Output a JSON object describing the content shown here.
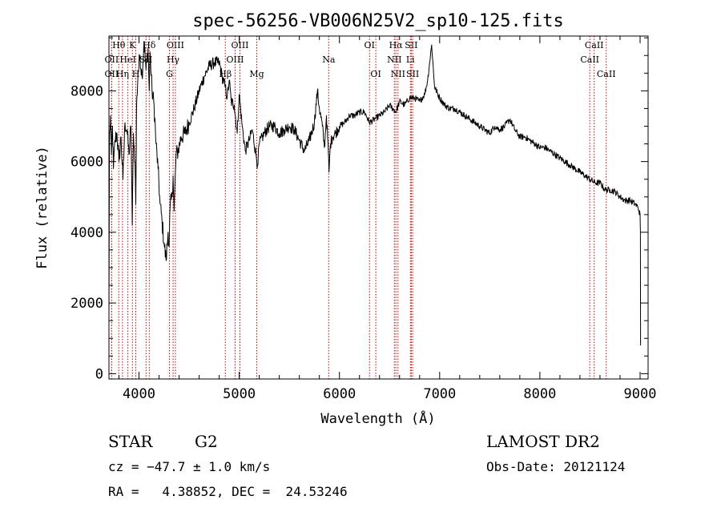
{
  "chart_data": {
    "type": "line",
    "title": "spec-56256-VB006N25V2_sp10-125.fits",
    "xlabel": "Wavelength (Å)",
    "ylabel": "Flux (relative)",
    "xlim": [
      3700,
      9080
    ],
    "ylim": [
      -150,
      9550
    ],
    "x_ticks": [
      4000,
      5000,
      6000,
      7000,
      8000,
      9000
    ],
    "x_tick_labels": [
      "4000",
      "5000",
      "6000",
      "7000",
      "8000",
      "9000"
    ],
    "y_ticks": [
      0,
      2000,
      4000,
      6000,
      8000
    ],
    "y_tick_labels": [
      "0",
      "2000",
      "4000",
      "6000",
      "8000"
    ],
    "grid": false,
    "series": [
      {
        "color": "#000000",
        "x": [
          3700,
          3705,
          3715,
          3725,
          3735,
          3745,
          3760,
          3780,
          3800,
          3820,
          3840,
          3860,
          3880,
          3900,
          3920,
          3933,
          3945,
          3960,
          3968,
          3975,
          3990,
          4010,
          4030,
          4050,
          4070,
          4090,
          4102,
          4110,
          4130,
          4150,
          4170,
          4190,
          4210,
          4230,
          4250,
          4270,
          4290,
          4300,
          4310,
          4330,
          4340,
          4350,
          4370,
          4390,
          4420,
          4460,
          4500,
          4550,
          4600,
          4650,
          4700,
          4750,
          4800,
          4830,
          4861,
          4880,
          4900,
          4920,
          4950,
          4980,
          5000,
          5030,
          5060,
          5100,
          5130,
          5167,
          5183,
          5200,
          5250,
          5300,
          5350,
          5400,
          5450,
          5500,
          5550,
          5600,
          5650,
          5700,
          5750,
          5780,
          5800,
          5830,
          5850,
          5870,
          5890,
          5896,
          5910,
          5930,
          5960,
          6000,
          6050,
          6100,
          6150,
          6200,
          6250,
          6300,
          6350,
          6400,
          6450,
          6500,
          6563,
          6600,
          6650,
          6700,
          6750,
          6800,
          6850,
          6880,
          6900,
          6920,
          6950,
          7000,
          7050,
          7100,
          7150,
          7200,
          7250,
          7300,
          7350,
          7400,
          7450,
          7500,
          7550,
          7600,
          7650,
          7700,
          7750,
          7800,
          7850,
          7900,
          7950,
          8000,
          8050,
          8100,
          8150,
          8200,
          8250,
          8300,
          8350,
          8400,
          8450,
          8500,
          8550,
          8600,
          8650,
          8700,
          8750,
          8800,
          8850,
          8900,
          8950,
          8980,
          9000,
          9003,
          9005
        ],
        "y": [
          1500,
          6500,
          7300,
          6200,
          7000,
          5800,
          6600,
          6800,
          6000,
          6700,
          5500,
          7100,
          6900,
          6200,
          7000,
          4200,
          6800,
          6000,
          4800,
          7500,
          8500,
          9000,
          8400,
          9400,
          8600,
          9200,
          8000,
          9100,
          8000,
          7600,
          6500,
          5800,
          4800,
          4300,
          3700,
          3200,
          4000,
          3600,
          4700,
          5000,
          5600,
          4600,
          6200,
          6300,
          6700,
          6800,
          7100,
          7500,
          8000,
          8400,
          8700,
          8800,
          8800,
          8400,
          8100,
          7800,
          8300,
          7700,
          7600,
          6800,
          7900,
          7000,
          6300,
          6600,
          6900,
          6200,
          5900,
          6500,
          6800,
          7000,
          7000,
          6800,
          6900,
          7000,
          6900,
          6600,
          6300,
          6600,
          7100,
          8000,
          7500,
          7000,
          6400,
          7300,
          6200,
          5700,
          6500,
          6700,
          6800,
          7000,
          7100,
          7300,
          7300,
          7400,
          7400,
          7100,
          7200,
          7300,
          7400,
          7600,
          7400,
          7700,
          7600,
          7800,
          7800,
          7700,
          7900,
          8300,
          8800,
          9300,
          8100,
          7800,
          7600,
          7500,
          7500,
          7400,
          7300,
          7200,
          7100,
          7000,
          6900,
          6800,
          7000,
          6900,
          7000,
          7200,
          6900,
          6700,
          6700,
          6600,
          6500,
          6400,
          6400,
          6300,
          6200,
          6100,
          6000,
          5900,
          5800,
          5700,
          5600,
          5500,
          5400,
          5400,
          5200,
          5200,
          5150,
          5000,
          4900,
          4900,
          4800,
          4700,
          4500,
          4000,
          800
        ]
      }
    ],
    "line_markers": [
      {
        "name": "Hθ",
        "wave": 3798,
        "row": 0
      },
      {
        "name": "K",
        "wave": 3934,
        "row": 0
      },
      {
        "name": "Hδ",
        "wave": 4102,
        "row": 0
      },
      {
        "name": "OIII",
        "wave": 4363,
        "row": 0
      },
      {
        "name": "OIII",
        "wave": 5007,
        "row": 0
      },
      {
        "name": "OI",
        "wave": 6300,
        "row": 0
      },
      {
        "name": "Hα",
        "wave": 6563,
        "row": 0
      },
      {
        "name": "SII",
        "wave": 6717,
        "row": 0
      },
      {
        "name": "CaII",
        "wave": 8542,
        "row": 0
      },
      {
        "name": "OII",
        "wave": 3727,
        "row": 1
      },
      {
        "name": "HeI",
        "wave": 3889,
        "row": 1
      },
      {
        "name": "SII",
        "wave": 4070,
        "row": 1
      },
      {
        "name": "Hγ",
        "wave": 4340,
        "row": 1
      },
      {
        "name": "OIII",
        "wave": 4959,
        "row": 1
      },
      {
        "name": "Na",
        "wave": 5893,
        "row": 1
      },
      {
        "name": "NII",
        "wave": 6548,
        "row": 1
      },
      {
        "name": "Li",
        "wave": 6708,
        "row": 1
      },
      {
        "name": "CaII",
        "wave": 8498,
        "row": 1
      },
      {
        "name": "OII",
        "wave": 3727,
        "row": 2
      },
      {
        "name": "Hη",
        "wave": 3835,
        "row": 2
      },
      {
        "name": "H",
        "wave": 3968,
        "row": 2
      },
      {
        "name": "G",
        "wave": 4304,
        "row": 2
      },
      {
        "name": "Hβ",
        "wave": 4861,
        "row": 2
      },
      {
        "name": "Mg",
        "wave": 5175,
        "row": 2
      },
      {
        "name": "OI",
        "wave": 6363,
        "row": 2
      },
      {
        "name": "NII",
        "wave": 6584,
        "row": 2
      },
      {
        "name": "SII",
        "wave": 6731,
        "row": 2
      },
      {
        "name": "CaII",
        "wave": 8662,
        "row": 2
      }
    ]
  },
  "info": {
    "object_class": "STAR",
    "subclass": "G2",
    "survey": "LAMOST DR2",
    "velocity": "cz = −47.7 ± 1.0 km/s",
    "obs_date": "Obs-Date: 20121124",
    "coords": "RA =   4.38852, DEC =  24.53246"
  },
  "colors": {
    "spectrum": "#000000",
    "marker_lines": "#cc0000",
    "background": "#ffffff"
  }
}
